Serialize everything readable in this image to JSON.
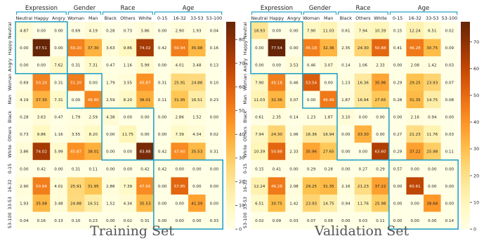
{
  "labels": [
    "Neutral",
    "Happy",
    "Angry",
    "Woman",
    "Man",
    "Black",
    "Others",
    "White",
    "0-15",
    "16-32",
    "33-53",
    "53-100"
  ],
  "groups": [
    {
      "name": "Expression",
      "start": 0,
      "end": 2
    },
    {
      "name": "Gender",
      "start": 3,
      "end": 4
    },
    {
      "name": "Race",
      "start": 5,
      "end": 7
    },
    {
      "name": "Age",
      "start": 8,
      "end": 11
    }
  ],
  "colors": {
    "box": "#29a3c9",
    "text_dark": "#222222",
    "text_light": "#ffffff",
    "caption": "#555555"
  },
  "chart_data": [
    {
      "type": "heatmap",
      "title": "Training Set",
      "rows": [
        "Neutral",
        "Happy",
        "Angry",
        "Woman",
        "Man",
        "Black",
        "Others",
        "White",
        "0-15",
        "16-32",
        "33-53",
        "53-100"
      ],
      "columns": [
        "Neutral",
        "Happy",
        "Angry",
        "Woman",
        "Man",
        "Black",
        "Others",
        "White",
        "0-15",
        "16-32",
        "33-53",
        "53-100"
      ],
      "values": [
        [
          4.87,
          0.0,
          0.0,
          0.69,
          4.19,
          0.28,
          0.73,
          3.86,
          0.0,
          2.9,
          1.93,
          0.04
        ],
        [
          0.0,
          87.51,
          0.0,
          50.2,
          37.3,
          3.63,
          9.86,
          74.02,
          0.42,
          50.94,
          35.98,
          0.16
        ],
        [
          0.0,
          0.0,
          7.62,
          0.31,
          7.31,
          0.47,
          1.16,
          5.99,
          0.0,
          4.01,
          3.48,
          0.13
        ],
        [
          0.69,
          50.2,
          0.31,
          51.2,
          0.0,
          1.79,
          3.55,
          45.87,
          0.31,
          25.91,
          24.88,
          0.1
        ],
        [
          4.19,
          37.3,
          7.31,
          0.0,
          48.8,
          2.59,
          8.2,
          38.01,
          0.11,
          31.95,
          16.51,
          0.23
        ],
        [
          0.28,
          3.63,
          0.47,
          1.79,
          2.59,
          4.38,
          0.0,
          0.0,
          0.0,
          2.86,
          1.52,
          0.0
        ],
        [
          0.73,
          9.86,
          1.16,
          3.55,
          8.2,
          0.0,
          11.75,
          0.0,
          0.0,
          7.39,
          4.34,
          0.02
        ],
        [
          3.86,
          74.02,
          5.99,
          45.87,
          38.01,
          0.0,
          0.0,
          83.88,
          0.42,
          47.6,
          35.53,
          0.31
        ],
        [
          0.0,
          0.42,
          0.0,
          0.31,
          0.11,
          0.0,
          0.0,
          0.42,
          0.42,
          0.0,
          0.0,
          0.0
        ],
        [
          2.9,
          50.94,
          4.01,
          25.91,
          31.95,
          2.86,
          7.39,
          47.6,
          0.0,
          57.85,
          0.0,
          0.0
        ],
        [
          1.93,
          35.98,
          3.48,
          24.88,
          16.51,
          1.52,
          4.34,
          35.53,
          0.0,
          0.0,
          41.39,
          0.0
        ],
        [
          0.04,
          0.16,
          0.13,
          0.1,
          0.23,
          0.0,
          0.02,
          0.31,
          0.0,
          0.0,
          0.0,
          0.33
        ]
      ],
      "colorbar": {
        "min": 0,
        "max": 87.51,
        "ticks": [
          0,
          10,
          20,
          30,
          40,
          50,
          60,
          70,
          80
        ]
      }
    },
    {
      "type": "heatmap",
      "title": "Validation Set",
      "rows": [
        "Neutral",
        "Happy",
        "Angry",
        "Woman",
        "Man",
        "Black",
        "Others",
        "White",
        "0-15",
        "16-32",
        "33-53",
        "53-100"
      ],
      "columns": [
        "Neutral",
        "Happy",
        "Angry",
        "Woman",
        "Man",
        "Black",
        "Others",
        "White",
        "0-15",
        "16-32",
        "33-53",
        "53-100"
      ],
      "values": [
        [
          18.93,
          0.0,
          0.0,
          7.9,
          11.03,
          0.61,
          7.94,
          10.39,
          0.15,
          12.24,
          6.51,
          0.02
        ],
        [
          0.0,
          77.54,
          0.0,
          45.18,
          32.36,
          2.35,
          24.3,
          50.88,
          0.41,
          46.28,
          30.75,
          0.09
        ],
        [
          0.0,
          0.0,
          3.53,
          0.46,
          3.07,
          0.14,
          1.06,
          2.33,
          0.0,
          2.08,
          1.42,
          0.03
        ],
        [
          7.9,
          45.18,
          0.46,
          53.54,
          0.0,
          1.23,
          16.36,
          35.96,
          0.29,
          29.25,
          23.93,
          0.07
        ],
        [
          11.03,
          32.36,
          3.07,
          0.0,
          46.46,
          1.87,
          16.94,
          27.65,
          0.28,
          31.35,
          14.75,
          0.08
        ],
        [
          0.61,
          2.35,
          0.14,
          1.23,
          1.87,
          3.1,
          0.0,
          0.0,
          0.0,
          2.16,
          0.94,
          0.0
        ],
        [
          7.94,
          24.3,
          1.06,
          16.36,
          16.94,
          0.0,
          33.3,
          0.0,
          0.27,
          21.23,
          11.76,
          0.03
        ],
        [
          10.39,
          50.88,
          2.33,
          35.96,
          27.65,
          0.0,
          0.0,
          63.6,
          0.29,
          37.22,
          25.98,
          0.11
        ],
        [
          0.15,
          0.41,
          0.0,
          0.29,
          0.28,
          0.0,
          0.27,
          0.29,
          0.57,
          0.0,
          0.0,
          0.0
        ],
        [
          12.24,
          46.28,
          2.08,
          29.25,
          31.35,
          2.16,
          21.23,
          37.22,
          0.0,
          60.61,
          0.0,
          0.0
        ],
        [
          6.51,
          30.75,
          1.42,
          23.93,
          14.75,
          0.94,
          11.76,
          25.98,
          0.0,
          0.0,
          38.68,
          0.0
        ],
        [
          0.02,
          0.09,
          0.03,
          0.07,
          0.08,
          0.0,
          0.03,
          0.11,
          0.0,
          0.0,
          0.0,
          0.14
        ]
      ],
      "colorbar": {
        "min": 0,
        "max": 77.54,
        "ticks": [
          0,
          10,
          20,
          30,
          40,
          50,
          60,
          70
        ]
      }
    }
  ]
}
